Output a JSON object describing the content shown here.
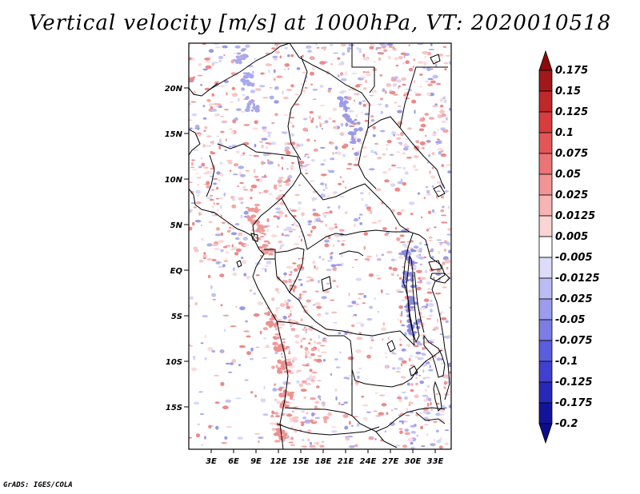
{
  "title": "Vertical velocity [m/s] at 1000hPa, VT: 2020010518",
  "credit": "GrADS: IGES/COLA",
  "map": {
    "lat_labels": [
      "20N",
      "15N",
      "10N",
      "5N",
      "EQ",
      "5S",
      "10S",
      "15S"
    ],
    "lon_labels": [
      "3E",
      "6E",
      "9E",
      "12E",
      "15E",
      "18E",
      "21E",
      "24E",
      "27E",
      "30E",
      "33E"
    ]
  },
  "colorbar": {
    "labels": [
      "0.175",
      "0.15",
      "0.125",
      "0.1",
      "0.075",
      "0.05",
      "0.025",
      "0.0125",
      "0.005",
      "-0.005",
      "-0.0125",
      "-0.025",
      "-0.05",
      "-0.075",
      "-0.1",
      "-0.125",
      "-0.175",
      "-0.2"
    ],
    "colors": [
      "#a01818",
      "#c0282a",
      "#d83c3c",
      "#e45656",
      "#ec7474",
      "#f29494",
      "#f7b4b4",
      "#fbd4d4",
      "#ffffff",
      "#dcdcfa",
      "#bcbcf4",
      "#9c9cee",
      "#7c7ce6",
      "#5c5cde",
      "#4040d0",
      "#2828b8",
      "#14149a",
      "#00007a"
    ],
    "top_arrow_color": "#8e0a0a",
    "bottom_arrow_color": "#0c0c8c"
  }
}
